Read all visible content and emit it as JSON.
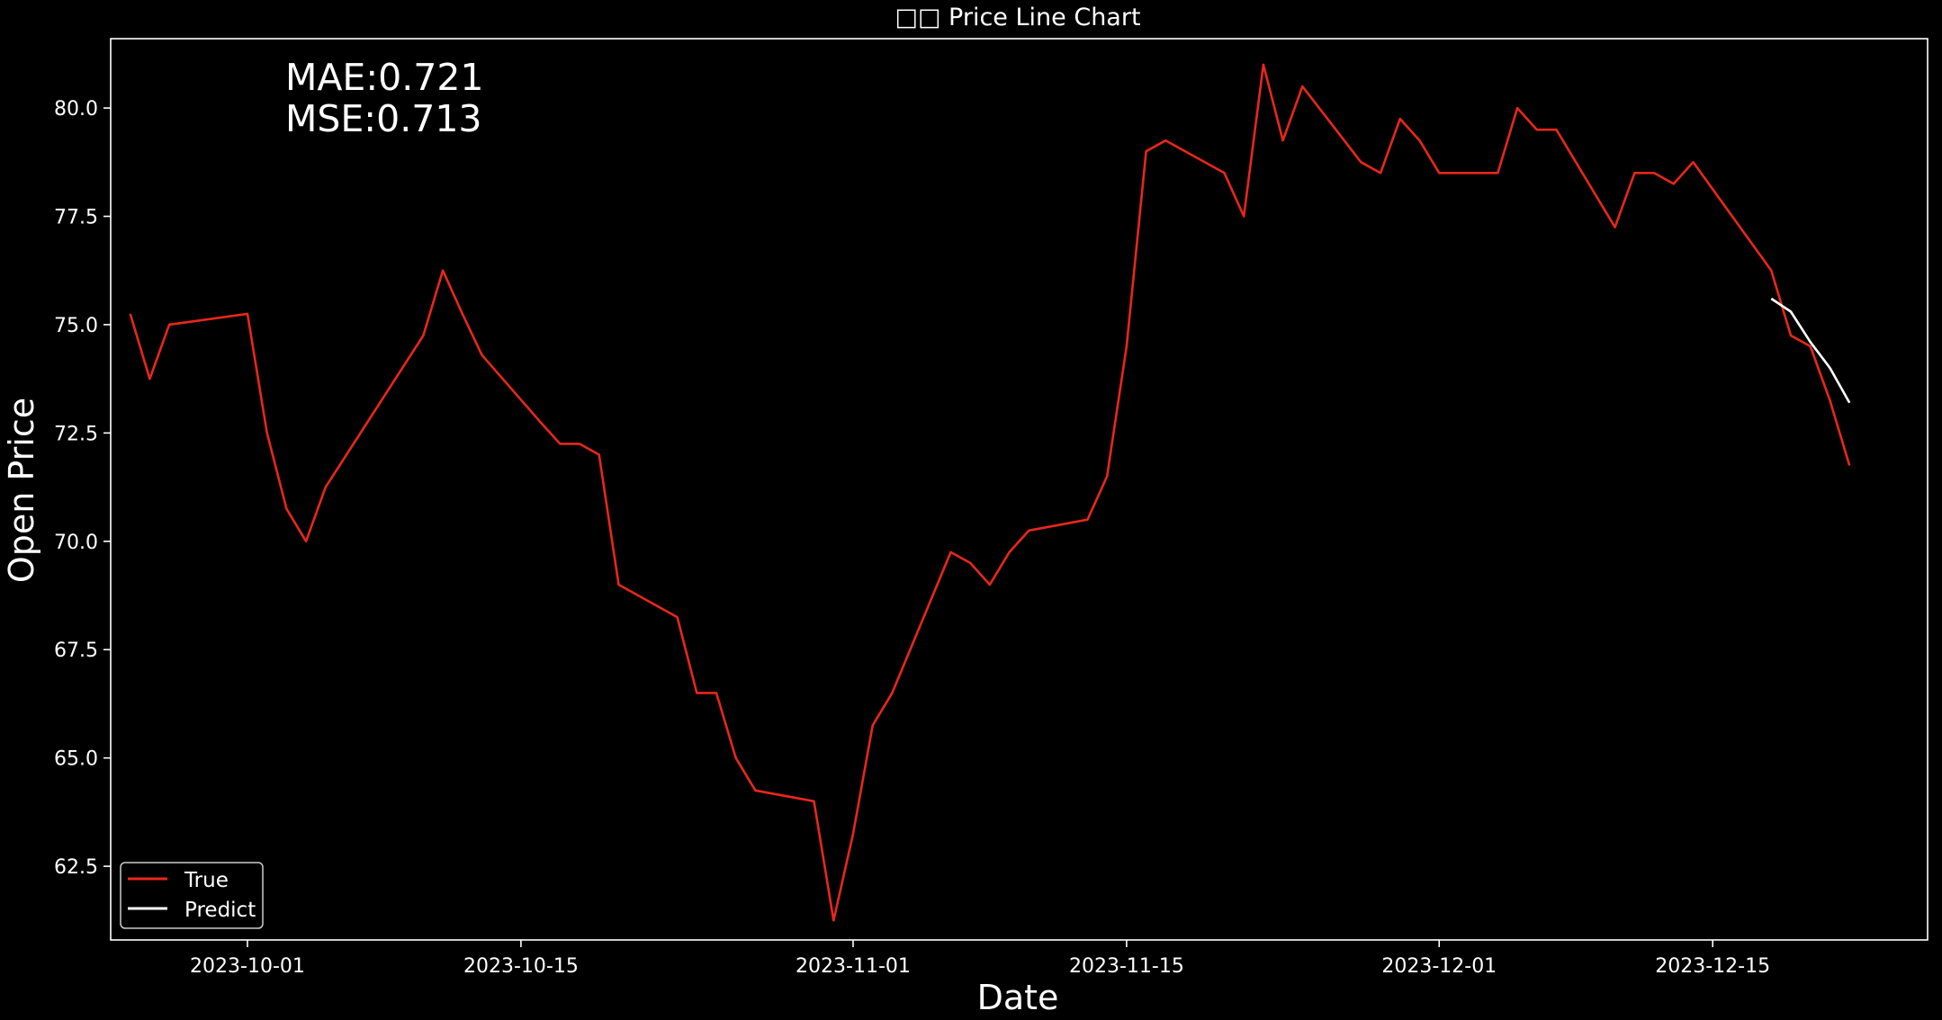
{
  "chart_data": {
    "type": "line",
    "title": "□□ Price Line Chart",
    "xlabel": "Date",
    "ylabel": "Open Price",
    "ylim": [
      60.8,
      81.6
    ],
    "xlim": [
      "2023-09-24",
      "2023-12-26"
    ],
    "yticks": [
      62.5,
      65.0,
      67.5,
      70.0,
      72.5,
      75.0,
      77.5,
      80.0
    ],
    "ytick_labels": [
      "62.5",
      "65.0",
      "67.5",
      "70.0",
      "72.5",
      "75.0",
      "77.5",
      "80.0"
    ],
    "xticks": [
      "2023-10-01",
      "2023-10-15",
      "2023-11-01",
      "2023-11-15",
      "2023-12-01",
      "2023-12-15"
    ],
    "xtick_labels": [
      "2023-10-01",
      "2023-10-15",
      "2023-11-01",
      "2023-11-15",
      "2023-12-01",
      "2023-12-15"
    ],
    "annotations": [
      "MAE:0.721",
      "MSE:0.713"
    ],
    "grid": false,
    "legend_position": "lower-left",
    "series": [
      {
        "name": "True",
        "color": "#e8271c",
        "x": [
          "2023-09-25",
          "2023-09-26",
          "2023-09-27",
          "2023-10-01",
          "2023-10-02",
          "2023-10-03",
          "2023-10-04",
          "2023-10-05",
          "2023-10-10",
          "2023-10-11",
          "2023-10-12",
          "2023-10-13",
          "2023-10-16",
          "2023-10-17",
          "2023-10-18",
          "2023-10-19",
          "2023-10-20",
          "2023-10-23",
          "2023-10-24",
          "2023-10-25",
          "2023-10-26",
          "2023-10-27",
          "2023-10-30",
          "2023-10-31",
          "2023-11-01",
          "2023-11-02",
          "2023-11-03",
          "2023-11-06",
          "2023-11-07",
          "2023-11-08",
          "2023-11-09",
          "2023-11-10",
          "2023-11-13",
          "2023-11-14",
          "2023-11-15",
          "2023-11-16",
          "2023-11-17",
          "2023-11-20",
          "2023-11-21",
          "2023-11-22",
          "2023-11-23",
          "2023-11-24",
          "2023-11-27",
          "2023-11-28",
          "2023-11-29",
          "2023-11-30",
          "2023-12-01",
          "2023-12-04",
          "2023-12-05",
          "2023-12-06",
          "2023-12-07",
          "2023-12-10",
          "2023-12-11",
          "2023-12-12",
          "2023-12-13",
          "2023-12-14",
          "2023-12-18",
          "2023-12-19",
          "2023-12-20",
          "2023-12-21",
          "2023-12-22"
        ],
        "values": [
          75.25,
          73.75,
          75.0,
          75.25,
          72.5,
          70.75,
          70.0,
          71.25,
          74.75,
          76.25,
          75.25,
          74.3,
          72.75,
          72.25,
          72.25,
          72.0,
          69.0,
          68.25,
          66.5,
          66.5,
          65.0,
          64.25,
          64.0,
          61.25,
          63.25,
          65.75,
          66.5,
          69.75,
          69.5,
          69.0,
          69.75,
          70.25,
          70.5,
          71.5,
          74.5,
          79.0,
          79.25,
          78.5,
          77.5,
          81.0,
          79.25,
          80.5,
          78.75,
          78.5,
          79.75,
          79.25,
          78.5,
          78.5,
          80.0,
          79.5,
          79.5,
          77.25,
          78.5,
          78.5,
          78.25,
          78.75,
          76.25,
          74.75,
          74.5,
          73.25,
          71.75
        ]
      },
      {
        "name": "Predict",
        "color": "#ffffff",
        "x": [
          "2023-12-18",
          "2023-12-19",
          "2023-12-20",
          "2023-12-21",
          "2023-12-22"
        ],
        "values": [
          75.6,
          75.3,
          74.6,
          74.0,
          73.2
        ]
      }
    ]
  }
}
